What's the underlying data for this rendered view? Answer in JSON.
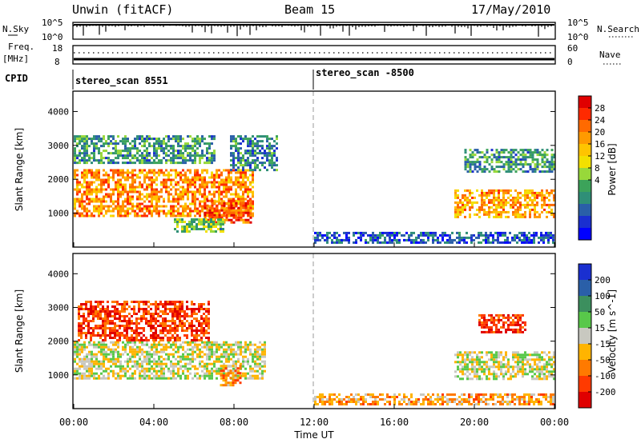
{
  "header": {
    "title": "Unwin (fitACF)",
    "beam": "Beam 15",
    "date": "17/May/2010"
  },
  "top_panels": {
    "nsky_label": "N.Sky",
    "nsky_ticks": [
      "10^5",
      "10^0"
    ],
    "nsearch_label": "N.Search",
    "nsearch_ticks": [
      "10^5",
      "10^0"
    ],
    "freq_label_line1": "Freq.",
    "freq_label_line2": "[MHz]",
    "freq_ticks": [
      "18",
      "8"
    ],
    "nave_label": "Nave",
    "nave_ticks": [
      "60",
      "0"
    ],
    "cpid_label": "CPID",
    "cpid_segments": [
      "stereo_scan 8551",
      "stereo_scan -8500"
    ]
  },
  "chart_data": [
    {
      "type": "heatmap",
      "name": "power",
      "ylabel": "Slant Range [km]",
      "yticks": [
        "1000",
        "2000",
        "3000",
        "4000"
      ],
      "ylim": [
        0,
        4600
      ],
      "xlim": [
        "00:00",
        "24:00"
      ],
      "colorbar_label": "Power [dB]",
      "colorbar_ticks": [
        "28",
        "24",
        "20",
        "16",
        "12",
        "8",
        "4"
      ],
      "colorbar_colors": [
        "#e00000",
        "#ff2a00",
        "#ff6a00",
        "#ff9a00",
        "#ffc400",
        "#f2e000",
        "#98d83a",
        "#3ca35a",
        "#2f8f77",
        "#2a5fa8",
        "#1a2fd0",
        "#0000ff"
      ],
      "regions": [
        {
          "t0": 0.0,
          "t1": 9.0,
          "r0": 900,
          "r1": 2300,
          "level": 0.75
        },
        {
          "t0": 0.0,
          "t1": 7.0,
          "r0": 2500,
          "r1": 3300,
          "level": 0.3
        },
        {
          "t0": 7.8,
          "t1": 10.2,
          "r0": 2300,
          "r1": 3300,
          "level": 0.25
        },
        {
          "t0": 6.5,
          "t1": 8.8,
          "r0": 700,
          "r1": 1400,
          "level": 0.85
        },
        {
          "t0": 5.0,
          "t1": 7.5,
          "r0": 450,
          "r1": 850,
          "level": 0.4
        },
        {
          "t0": 12.0,
          "t1": 24.0,
          "r0": 150,
          "r1": 450,
          "level": 0.15
        },
        {
          "t0": 19.0,
          "t1": 24.0,
          "r0": 900,
          "r1": 1700,
          "level": 0.7
        },
        {
          "t0": 19.5,
          "t1": 24.0,
          "r0": 2200,
          "r1": 2900,
          "level": 0.3
        }
      ]
    },
    {
      "type": "heatmap",
      "name": "velocity",
      "ylabel": "Slant Range [km]",
      "yticks": [
        "1000",
        "2000",
        "3000",
        "4000"
      ],
      "ylim": [
        0,
        4600
      ],
      "xlabel": "Time UT",
      "xticks": [
        "00:00",
        "04:00",
        "08:00",
        "12:00",
        "16:00",
        "20:00",
        "00:00"
      ],
      "xlim": [
        "00:00",
        "24:00"
      ],
      "colorbar_label": "Velocity [m s^-1]",
      "colorbar_ticks": [
        "200",
        "100",
        "50",
        "15",
        "-15",
        "-50",
        "-100",
        "-200"
      ],
      "colorbar_colors": [
        "#1a2fd0",
        "#2a5fa8",
        "#3c8f5e",
        "#58c84a",
        "#c8c8c0",
        "#ffb400",
        "#ff7a00",
        "#ff3a00",
        "#e00000"
      ],
      "regions": [
        {
          "t0": 0.0,
          "t1": 9.5,
          "r0": 900,
          "r1": 2000,
          "level": 0.0
        },
        {
          "t0": 0.2,
          "t1": 6.8,
          "r0": 2000,
          "r1": 3200,
          "level": -0.8
        },
        {
          "t0": 7.3,
          "t1": 8.3,
          "r0": 700,
          "r1": 1300,
          "level": -0.4
        },
        {
          "t0": 12.0,
          "t1": 24.0,
          "r0": 150,
          "r1": 450,
          "level": -0.35
        },
        {
          "t0": 19.0,
          "t1": 24.0,
          "r0": 900,
          "r1": 1700,
          "level": 0.0
        },
        {
          "t0": 20.2,
          "t1": 22.5,
          "r0": 2300,
          "r1": 2800,
          "level": -0.8
        }
      ]
    }
  ],
  "colors": {
    "axis": "#000000",
    "separator_dashed": "#999999"
  }
}
